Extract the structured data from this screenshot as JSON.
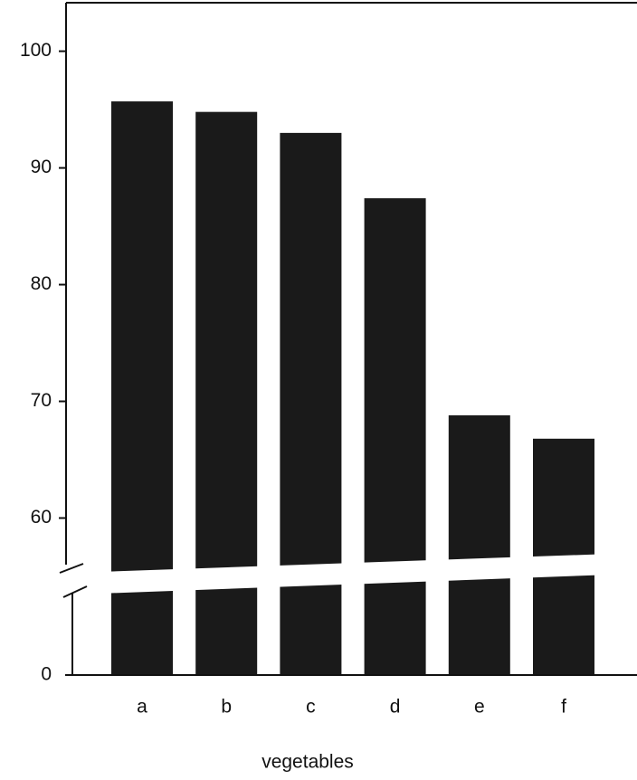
{
  "chart_data": {
    "type": "bar",
    "x_label": "vegetables",
    "categories": [
      "a",
      "b",
      "c",
      "d",
      "e",
      "f"
    ],
    "values": [
      95.7,
      94.8,
      93.0,
      87.4,
      68.8,
      66.8
    ],
    "color": "#1a1a1a",
    "ylim": [
      0,
      104
    ],
    "yticks": [
      0,
      60,
      70,
      80,
      90,
      100
    ],
    "axis_break": true
  }
}
